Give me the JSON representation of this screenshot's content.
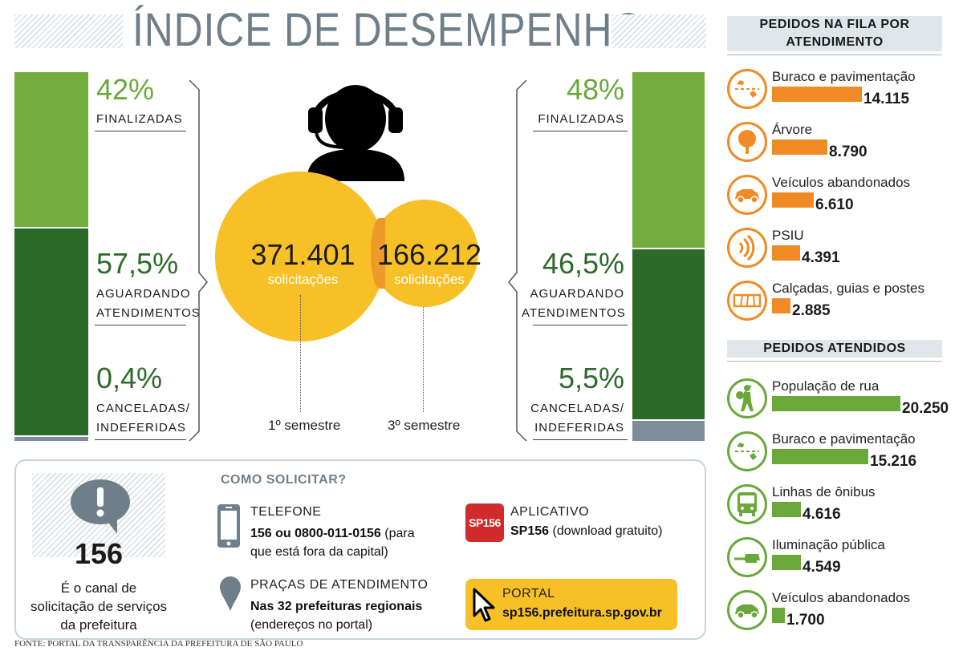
{
  "title": "ÍNDICE DE DESEMPENHO",
  "left": {
    "finalizadas": {
      "pct": "42%",
      "label": "FINALIZADAS",
      "value": 42
    },
    "aguardando": {
      "pct": "57,5%",
      "label1": "AGUARDANDO",
      "label2": "ATENDIMENTOS",
      "value": 57.5
    },
    "canceladas": {
      "pct": "0,4%",
      "label1": "CANCELADAS/",
      "label2": "INDEFERIDAS",
      "value": 0.4
    }
  },
  "right": {
    "finalizadas": {
      "pct": "48%",
      "label": "FINALIZADAS",
      "value": 48
    },
    "aguardando": {
      "pct": "46,5%",
      "label1": "AGUARDANDO",
      "label2": "ATENDIMENTOS",
      "value": 46.5
    },
    "canceladas": {
      "pct": "5,5%",
      "label1": "CANCELADAS/",
      "label2": "INDEFERIDAS",
      "value": 5.5
    }
  },
  "circles": {
    "first": {
      "number": "371.401",
      "unit": "solicitações",
      "semester": "1º semestre"
    },
    "second": {
      "number": "166.212",
      "unit": "solicitações",
      "semester": "3º semestre"
    }
  },
  "queue": {
    "heading1": "PEDIDOS NA FILA POR",
    "heading2": "ATENDIMENTO",
    "items": [
      {
        "label": "Buraco e pavimentação",
        "value": "14.115",
        "num": 14115,
        "icon": "pothole-icon"
      },
      {
        "label": "Árvore",
        "value": "8.790",
        "num": 8790,
        "icon": "tree-icon"
      },
      {
        "label": "Veículos abandonados",
        "value": "6.610",
        "num": 6610,
        "icon": "car-icon"
      },
      {
        "label": "PSIU",
        "value": "4.391",
        "num": 4391,
        "icon": "sound-waves-icon"
      },
      {
        "label": "Calçadas, guias e postes",
        "value": "2.885",
        "num": 2885,
        "icon": "sidewalk-icon"
      }
    ]
  },
  "served": {
    "heading": "PEDIDOS ATENDIDOS",
    "items": [
      {
        "label": "População de rua",
        "value": "20.250",
        "num": 20250,
        "icon": "homeless-person-icon"
      },
      {
        "label": "Buraco e pavimentação",
        "value": "15.216",
        "num": 15216,
        "icon": "pothole-icon"
      },
      {
        "label": "Linhas de ônibus",
        "value": "4.616",
        "num": 4616,
        "icon": "bus-icon"
      },
      {
        "label": "Iluminação pública",
        "value": "4.549",
        "num": 4549,
        "icon": "street-light-icon"
      },
      {
        "label": "Veículos abandonados",
        "value": "1.700",
        "num": 1700,
        "icon": "car-icon"
      }
    ]
  },
  "channel": {
    "number": "156",
    "desc1": "É o canal de",
    "desc2": "solicitação de serviços",
    "desc3": "da prefeitura"
  },
  "how": {
    "heading": "COMO SOLICITAR?",
    "phone": {
      "title": "TELEFONE",
      "bold": "156 ou 0800-011-0156",
      "rest1": " (para",
      "rest2": "que está fora da capital)"
    },
    "places": {
      "title": "PRAÇAS DE ATENDIMENTO",
      "bold": "Nas 32 prefeituras regionais",
      "rest": "(endereços no portal)"
    },
    "app": {
      "title": "APLICATIVO",
      "bold": "SP156",
      "rest": " (download gratuito)",
      "logo_sp": "SP",
      "logo_num": "156"
    },
    "portal": {
      "title": "PORTAL",
      "bold": "sp156.prefeitura.sp.gov.br"
    }
  },
  "source": "FONTE: PORTAL DA TRANSPARÊNCIA DA PREFEITURA DE SÃO PAULO",
  "colors": {
    "green_light": "#73ad3d",
    "green_dark": "#2b6a28",
    "gray": "#7d8e98",
    "yellow": "#f6c026",
    "orange": "#f08a24",
    "title": "#6e7f8a"
  }
}
